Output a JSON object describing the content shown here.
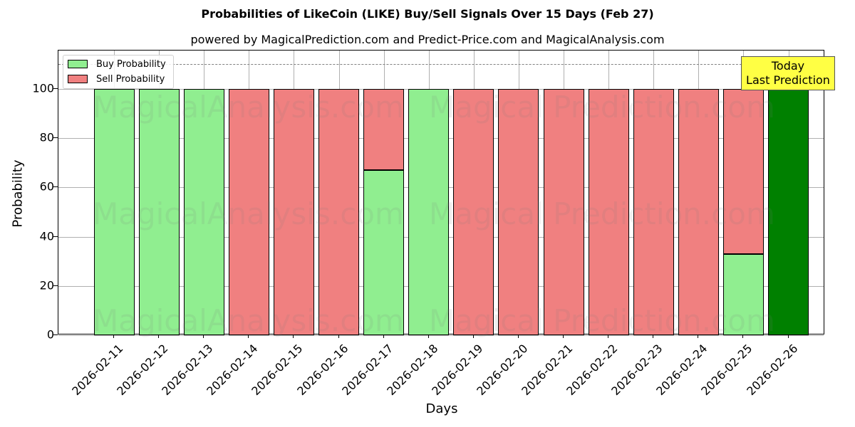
{
  "chart_data": {
    "type": "bar",
    "stacked": true,
    "title": "Probabilities of LikeCoin (LIKE) Buy/Sell Signals Over 15 Days (Feb 27)",
    "subtitle": "powered by MagicalPrediction.com and Predict-Price.com and MagicalAnalysis.com",
    "xlabel": "Days",
    "ylabel": "Probability",
    "ylim": [
      0,
      115
    ],
    "yticks": [
      0,
      20,
      40,
      60,
      80,
      100
    ],
    "grid": true,
    "reference_line": {
      "y": 110,
      "style": "dashed",
      "color": "#808080"
    },
    "legend_position": "upper left",
    "categories": [
      "2026-02-11",
      "2026-02-12",
      "2026-02-13",
      "2026-02-14",
      "2026-02-15",
      "2026-02-16",
      "2026-02-17",
      "2026-02-18",
      "2026-02-19",
      "2026-02-20",
      "2026-02-21",
      "2026-02-22",
      "2026-02-23",
      "2026-02-24",
      "2026-02-25",
      "2026-02-26"
    ],
    "series": [
      {
        "name": "Buy Probability",
        "color": "#90ee90",
        "values": [
          100,
          100,
          100,
          0,
          0,
          0,
          67,
          100,
          0,
          0,
          0,
          0,
          0,
          0,
          33,
          100
        ]
      },
      {
        "name": "Sell Probability",
        "color": "#f08080",
        "values": [
          0,
          0,
          0,
          100,
          100,
          100,
          33,
          0,
          100,
          100,
          100,
          100,
          100,
          100,
          67,
          0
        ]
      }
    ],
    "highlight": {
      "category": "2026-02-26",
      "color": "#008000",
      "annotation": "Today\nLast Prediction",
      "annotation_bg": "#ffff44"
    },
    "watermarks": [
      "MagicalAnalysis.com",
      "Magical Prediction.com"
    ]
  },
  "legend": {
    "buy": "Buy Probability",
    "sell": "Sell Probability"
  },
  "annotation": {
    "line1": "Today",
    "line2": "Last Prediction"
  }
}
